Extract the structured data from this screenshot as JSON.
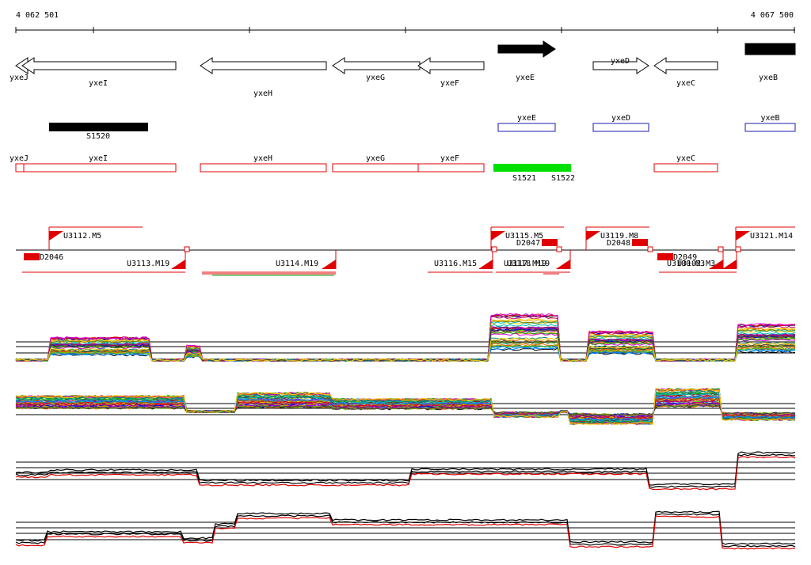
{
  "ruler": {
    "start_label": "4 062 501",
    "end_label": "4 067 500"
  },
  "colors": {
    "annotated_gene_outline": "#000000",
    "predicted_gene_outline": "#1a1ab0",
    "segment_outline": "#e00000",
    "black_feature": "#000000",
    "green_feature": "#00e000",
    "tu_flag": "#e00000",
    "profile_red": "#e00000",
    "profile_black": "#000000"
  },
  "genes": [
    {
      "name": "yxeJ",
      "strand": "-",
      "filled": false
    },
    {
      "name": "yxeI",
      "strand": "-",
      "filled": false
    },
    {
      "name": "yxeH",
      "strand": "-",
      "filled": false
    },
    {
      "name": "yxeG",
      "strand": "-",
      "filled": false
    },
    {
      "name": "yxeF",
      "strand": "-",
      "filled": false
    },
    {
      "name": "yxeE",
      "strand": "+",
      "filled": true
    },
    {
      "name": "yxeD",
      "strand": "+",
      "filled": false
    },
    {
      "name": "yxeC",
      "strand": "-",
      "filled": false
    },
    {
      "name": "yxeB",
      "strand": "+",
      "filled": true
    }
  ],
  "black_features": [
    {
      "name": "S1520"
    }
  ],
  "predicted_genes": [
    {
      "name": "yxeE"
    },
    {
      "name": "yxeD"
    },
    {
      "name": "yxeB"
    }
  ],
  "segments": [
    {
      "name": "yxeJ"
    },
    {
      "name": "yxeI"
    },
    {
      "name": "yxeH"
    },
    {
      "name": "yxeG"
    },
    {
      "name": "yxeF"
    },
    {
      "name": "yxeC"
    }
  ],
  "green_features": [
    {
      "name": "S1521"
    },
    {
      "name": "S1522"
    }
  ],
  "transcription_units": {
    "forward": [
      {
        "name": "U3112.M5"
      },
      {
        "name": "U3115.M5"
      },
      {
        "name": "U3119.M8"
      },
      {
        "name": "U3121.M14"
      }
    ],
    "reverse": [
      {
        "name": "U3113.M19"
      },
      {
        "name": "U3114.M19"
      },
      {
        "name": "U3116.M15"
      },
      {
        "name": "U3117.M19"
      },
      {
        "name": "U3118.M19"
      },
      {
        "name": "U3100.M3"
      },
      {
        "name": "U3102.M3"
      }
    ],
    "downregulated": [
      {
        "name": "D2046"
      },
      {
        "name": "D2047"
      },
      {
        "name": "D2048"
      },
      {
        "name": "D2049"
      }
    ]
  },
  "profile_panels": [
    {
      "name": "forward-strand-multi",
      "type": "multi"
    },
    {
      "name": "reverse-strand-multi",
      "type": "multi"
    },
    {
      "name": "forward-strand-pair",
      "type": "pair"
    },
    {
      "name": "reverse-strand-pair",
      "type": "pair"
    }
  ]
}
